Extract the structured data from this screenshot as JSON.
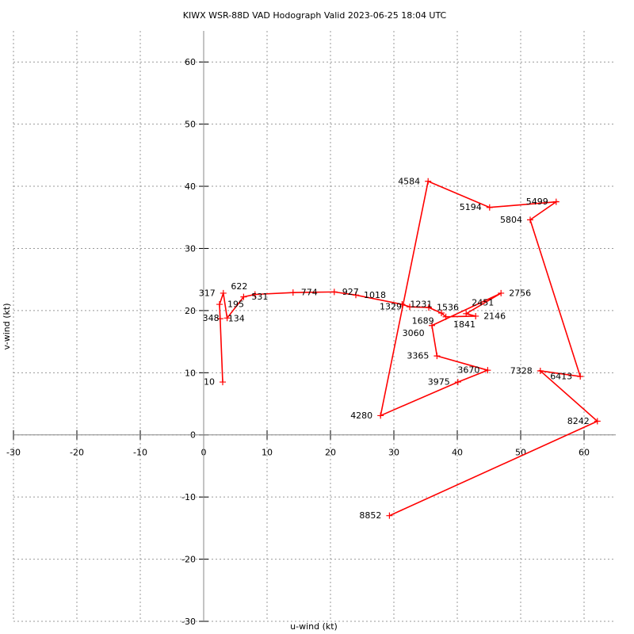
{
  "chart_data": {
    "type": "line",
    "title": "KIWX WSR-88D VAD Hodograph Valid 2023-06-25 18:04 UTC",
    "xlabel": "u-wind (kt)",
    "ylabel": "v-wind (kt)",
    "xlim": [
      -30,
      65
    ],
    "ylim": [
      -30,
      65
    ],
    "xticks": [
      -30,
      -20,
      -10,
      0,
      10,
      20,
      30,
      40,
      50,
      60
    ],
    "yticks": [
      -30,
      -20,
      -10,
      0,
      10,
      20,
      30,
      40,
      50,
      60
    ],
    "grid": true,
    "line_color": "#ff0000",
    "points": [
      {
        "label": "10",
        "u": 3.0,
        "v": 8.5
      },
      {
        "label": "134",
        "u": 2.6,
        "v": 18.7
      },
      {
        "label": "195",
        "u": 2.5,
        "v": 21.0
      },
      {
        "label": "317",
        "u": 3.1,
        "v": 22.8
      },
      {
        "label": "348",
        "u": 3.7,
        "v": 18.8
      },
      {
        "label": "531",
        "u": 6.3,
        "v": 22.2
      },
      {
        "label": "622",
        "u": 8.1,
        "v": 22.6
      },
      {
        "label": "774",
        "u": 14.1,
        "v": 22.9
      },
      {
        "label": "927",
        "u": 20.6,
        "v": 23.0
      },
      {
        "label": "1018",
        "u": 24.0,
        "v": 22.5
      },
      {
        "label": "1231",
        "u": 31.3,
        "v": 21.0
      },
      {
        "label": "1329",
        "u": 32.5,
        "v": 20.6
      },
      {
        "label": "1536",
        "u": 35.5,
        "v": 20.5
      },
      {
        "label": "1689",
        "u": 37.5,
        "v": 19.6
      },
      {
        "label": "1841",
        "u": 38.2,
        "v": 19.0
      },
      {
        "label": "2146",
        "u": 42.9,
        "v": 19.1
      },
      {
        "label": "2451",
        "u": 41.4,
        "v": 19.5
      },
      {
        "label": "2756",
        "u": 46.9,
        "v": 22.8
      },
      {
        "label": "3060",
        "u": 36.0,
        "v": 17.6
      },
      {
        "label": "3365",
        "u": 36.8,
        "v": 12.7
      },
      {
        "label": "3670",
        "u": 44.8,
        "v": 10.4
      },
      {
        "label": "3975",
        "u": 40.1,
        "v": 8.5
      },
      {
        "label": "4280",
        "u": 27.9,
        "v": 3.1
      },
      {
        "label": "4584",
        "u": 35.4,
        "v": 40.8
      },
      {
        "label": "5194",
        "u": 45.1,
        "v": 36.6
      },
      {
        "label": "5499",
        "u": 55.6,
        "v": 37.5
      },
      {
        "label": "5804",
        "u": 51.5,
        "v": 34.6
      },
      {
        "label": "6413",
        "u": 59.4,
        "v": 9.4
      },
      {
        "label": "7328",
        "u": 53.1,
        "v": 10.3
      },
      {
        "label": "8242",
        "u": 62.1,
        "v": 2.2
      },
      {
        "label": "8852",
        "u": 29.3,
        "v": -13.0
      }
    ]
  }
}
